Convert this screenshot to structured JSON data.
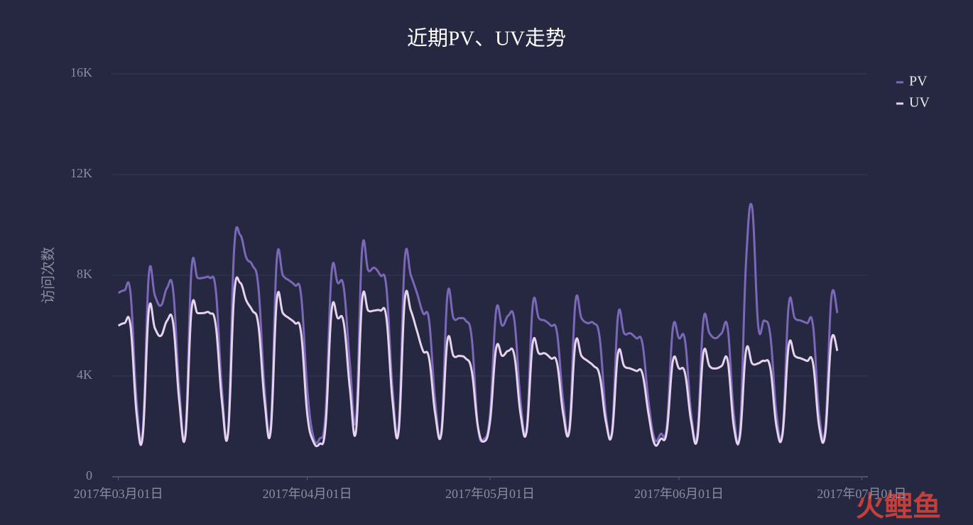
{
  "chart_data": {
    "type": "line",
    "title": "近期PV、UV走势",
    "y_label": "访问次数",
    "watermark": "火鲤鱼",
    "legend": "top-right",
    "grid": true,
    "xlim": [
      "2017-02-28",
      "2017-07-02"
    ],
    "xticks": [
      {
        "value": "2017-03-01",
        "label": "2017年03月01日"
      },
      {
        "value": "2017-04-01",
        "label": "2017年04月01日"
      },
      {
        "value": "2017-05-01",
        "label": "2017年05月01日"
      },
      {
        "value": "2017-06-01",
        "label": "2017年06月01日"
      },
      {
        "value": "2017-07-01",
        "label": "2017年07月01日"
      }
    ],
    "ylim": [
      0,
      16000
    ],
    "yticks": [
      0,
      {
        "value": 4000,
        "label": "4K"
      },
      {
        "value": 8000,
        "label": "8K"
      },
      {
        "value": 12000,
        "label": "12K"
      },
      {
        "value": 16000,
        "label": "16K"
      }
    ],
    "x": [
      "2017-03-01",
      "2017-03-02",
      "2017-03-03",
      "2017-03-04",
      "2017-03-05",
      "2017-03-06",
      "2017-03-07",
      "2017-03-08",
      "2017-03-09",
      "2017-03-10",
      "2017-03-11",
      "2017-03-12",
      "2017-03-13",
      "2017-03-14",
      "2017-03-15",
      "2017-03-16",
      "2017-03-17",
      "2017-03-18",
      "2017-03-19",
      "2017-03-20",
      "2017-03-21",
      "2017-03-22",
      "2017-03-23",
      "2017-03-24",
      "2017-03-25",
      "2017-03-26",
      "2017-03-27",
      "2017-03-28",
      "2017-03-29",
      "2017-03-30",
      "2017-03-31",
      "2017-04-01",
      "2017-04-02",
      "2017-04-03",
      "2017-04-04",
      "2017-04-05",
      "2017-04-06",
      "2017-04-07",
      "2017-04-08",
      "2017-04-09",
      "2017-04-10",
      "2017-04-11",
      "2017-04-12",
      "2017-04-13",
      "2017-04-14",
      "2017-04-15",
      "2017-04-16",
      "2017-04-17",
      "2017-04-18",
      "2017-04-19",
      "2017-04-20",
      "2017-04-21",
      "2017-04-22",
      "2017-04-23",
      "2017-04-24",
      "2017-04-25",
      "2017-04-26",
      "2017-04-27",
      "2017-04-28",
      "2017-04-29",
      "2017-04-30",
      "2017-05-01",
      "2017-05-02",
      "2017-05-03",
      "2017-05-04",
      "2017-05-05",
      "2017-05-06",
      "2017-05-07",
      "2017-05-08",
      "2017-05-09",
      "2017-05-10",
      "2017-05-11",
      "2017-05-12",
      "2017-05-13",
      "2017-05-14",
      "2017-05-15",
      "2017-05-16",
      "2017-05-17",
      "2017-05-18",
      "2017-05-19",
      "2017-05-20",
      "2017-05-21",
      "2017-05-22",
      "2017-05-23",
      "2017-05-24",
      "2017-05-25",
      "2017-05-26",
      "2017-05-27",
      "2017-05-28",
      "2017-05-29",
      "2017-05-30",
      "2017-05-31",
      "2017-06-01",
      "2017-06-02",
      "2017-06-03",
      "2017-06-04",
      "2017-06-05",
      "2017-06-06",
      "2017-06-07",
      "2017-06-08",
      "2017-06-09",
      "2017-06-10",
      "2017-06-11",
      "2017-06-12",
      "2017-06-13",
      "2017-06-14",
      "2017-06-15",
      "2017-06-16",
      "2017-06-17",
      "2017-06-18",
      "2017-06-19",
      "2017-06-20",
      "2017-06-21",
      "2017-06-22",
      "2017-06-23",
      "2017-06-24",
      "2017-06-25",
      "2017-06-26",
      "2017-06-27"
    ],
    "series": [
      {
        "name": "PV",
        "color": "#7b68b8",
        "values": [
          7300,
          7400,
          7300,
          3000,
          1800,
          8000,
          7200,
          6800,
          7500,
          7400,
          3500,
          1700,
          8200,
          7900,
          7900,
          7900,
          7400,
          3500,
          1800,
          9000,
          9600,
          8700,
          8400,
          7500,
          3500,
          2000,
          8600,
          8000,
          7800,
          7600,
          7200,
          3500,
          1600,
          1500,
          2500,
          8100,
          7700,
          7500,
          4500,
          2300,
          9000,
          8200,
          8300,
          8000,
          7500,
          3500,
          2000,
          8600,
          8000,
          7300,
          6500,
          6200,
          3000,
          1800,
          7200,
          6300,
          6300,
          6200,
          5500,
          2000,
          1500,
          2500,
          6600,
          6000,
          6400,
          6200,
          3000,
          1900,
          6800,
          6300,
          6200,
          6000,
          5700,
          3000,
          1900,
          6900,
          6300,
          6100,
          6100,
          5500,
          2500,
          1800,
          6400,
          5700,
          5700,
          5500,
          5300,
          3000,
          1500,
          1700,
          2000,
          5900,
          5500,
          5400,
          2500,
          1700,
          6200,
          5700,
          5500,
          5700,
          5900,
          2500,
          1800,
          8500,
          10700,
          6000,
          6200,
          5600,
          2500,
          1800,
          6800,
          6300,
          6200,
          6100,
          6000,
          2500,
          1900,
          7100,
          6500
        ]
      },
      {
        "name": "UV",
        "color": "#e6d3ee",
        "values": [
          6000,
          6100,
          6000,
          2500,
          1600,
          6600,
          5900,
          5600,
          6200,
          6100,
          3000,
          1600,
          6600,
          6500,
          6500,
          6500,
          6000,
          3000,
          1700,
          7200,
          7700,
          7000,
          6600,
          6000,
          3000,
          1800,
          7000,
          6500,
          6300,
          6100,
          5700,
          2500,
          1400,
          1300,
          2000,
          6600,
          6300,
          6100,
          3500,
          1800,
          7000,
          6600,
          6600,
          6600,
          6300,
          3000,
          1800,
          7000,
          6600,
          5800,
          5000,
          4700,
          2500,
          1700,
          5400,
          4800,
          4800,
          4700,
          4200,
          2000,
          1400,
          2200,
          5100,
          4800,
          5000,
          4800,
          2500,
          1800,
          5300,
          4900,
          4900,
          4700,
          4500,
          2500,
          1800,
          5300,
          4800,
          4600,
          4400,
          4000,
          2200,
          1700,
          4900,
          4400,
          4300,
          4200,
          4100,
          2500,
          1300,
          1500,
          1800,
          4600,
          4300,
          4100,
          2200,
          1500,
          4900,
          4400,
          4300,
          4400,
          4600,
          2000,
          1600,
          5000,
          4500,
          4500,
          4600,
          4300,
          2000,
          1700,
          5200,
          4800,
          4700,
          4600,
          4500,
          2000,
          1700,
          5400,
          5000
        ]
      }
    ]
  }
}
